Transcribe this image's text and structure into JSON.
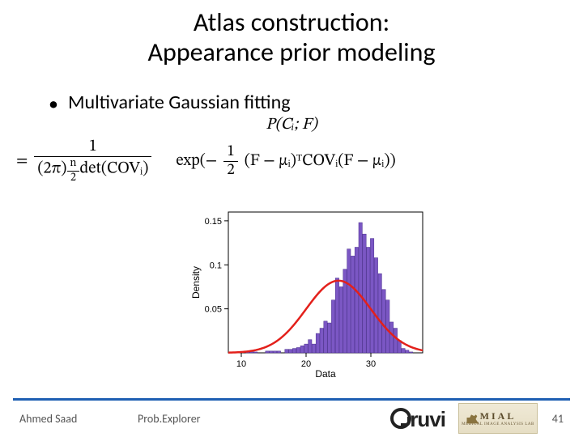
{
  "title_line1": "Atlas construction:",
  "title_line2": "Appearance prior modeling",
  "bullet": "Multivariate Gaussian fitting",
  "formula": {
    "lhs_top": "P(Cᵢ; F)",
    "eq": "=",
    "frac_num": "1",
    "frac_den_left": "(2π)",
    "frac_den_exp_num": "n",
    "frac_den_exp_den": "2",
    "frac_den_right": "det(COVᵢ)",
    "exp_prefix": "exp(−",
    "half_num": "1",
    "half_den": "2",
    "exp_rest": "(F − μᵢ)ᵀCOVᵢ(F − μᵢ))"
  },
  "chart": {
    "type": "histogram+line",
    "x_label": "Data",
    "y_label": "Density",
    "xlim": [
      8,
      38
    ],
    "ylim": [
      0,
      0.16
    ],
    "xticks": [
      10,
      20,
      30
    ],
    "yticks": [
      0.05,
      0.1,
      0.15
    ],
    "background_color": "#ffffff",
    "axis_color": "#000000",
    "bar_color": "#7b57c4",
    "bar_edge_color": "#4a2e8e",
    "curve_color": "#e3201b",
    "curve_width": 2.5,
    "label_fontsize": 12,
    "tick_fontsize": 11,
    "bars": [
      {
        "x": 11.0,
        "h": 0.001
      },
      {
        "x": 11.6,
        "h": 0.001
      },
      {
        "x": 12.2,
        "h": 0.001
      },
      {
        "x": 14.0,
        "h": 0.002
      },
      {
        "x": 14.6,
        "h": 0.002
      },
      {
        "x": 15.2,
        "h": 0.002
      },
      {
        "x": 15.8,
        "h": 0.002
      },
      {
        "x": 17.0,
        "h": 0.004
      },
      {
        "x": 17.6,
        "h": 0.004
      },
      {
        "x": 18.2,
        "h": 0.005
      },
      {
        "x": 18.8,
        "h": 0.006
      },
      {
        "x": 19.4,
        "h": 0.008
      },
      {
        "x": 20.0,
        "h": 0.01
      },
      {
        "x": 20.6,
        "h": 0.015
      },
      {
        "x": 21.2,
        "h": 0.01
      },
      {
        "x": 21.8,
        "h": 0.022
      },
      {
        "x": 22.4,
        "h": 0.028
      },
      {
        "x": 23.0,
        "h": 0.036
      },
      {
        "x": 23.6,
        "h": 0.034
      },
      {
        "x": 24.2,
        "h": 0.06
      },
      {
        "x": 24.8,
        "h": 0.085
      },
      {
        "x": 25.4,
        "h": 0.075
      },
      {
        "x": 26.0,
        "h": 0.095
      },
      {
        "x": 26.6,
        "h": 0.118
      },
      {
        "x": 27.2,
        "h": 0.11
      },
      {
        "x": 27.8,
        "h": 0.12
      },
      {
        "x": 28.4,
        "h": 0.148
      },
      {
        "x": 29.0,
        "h": 0.135
      },
      {
        "x": 29.6,
        "h": 0.12
      },
      {
        "x": 30.2,
        "h": 0.13
      },
      {
        "x": 30.8,
        "h": 0.108
      },
      {
        "x": 31.4,
        "h": 0.09
      },
      {
        "x": 32.0,
        "h": 0.072
      },
      {
        "x": 32.6,
        "h": 0.06
      },
      {
        "x": 33.2,
        "h": 0.035
      },
      {
        "x": 33.8,
        "h": 0.028
      },
      {
        "x": 34.4,
        "h": 0.014
      },
      {
        "x": 35.0,
        "h": 0.005
      },
      {
        "x": 35.6,
        "h": 0.003
      },
      {
        "x": 36.2,
        "h": 0.001
      }
    ],
    "bar_width": 0.55,
    "gaussian": {
      "mean": 25.0,
      "sd": 5.0,
      "peak": 0.082
    }
  },
  "footer": {
    "author": "Ahmed Saad",
    "center": "Prob.Explorer",
    "page": "41",
    "line_color": "#1e5fb3",
    "logo1": "gruvi",
    "logo2_big": "MIAL",
    "logo2_small": "Medical Image Analysis Lab"
  }
}
